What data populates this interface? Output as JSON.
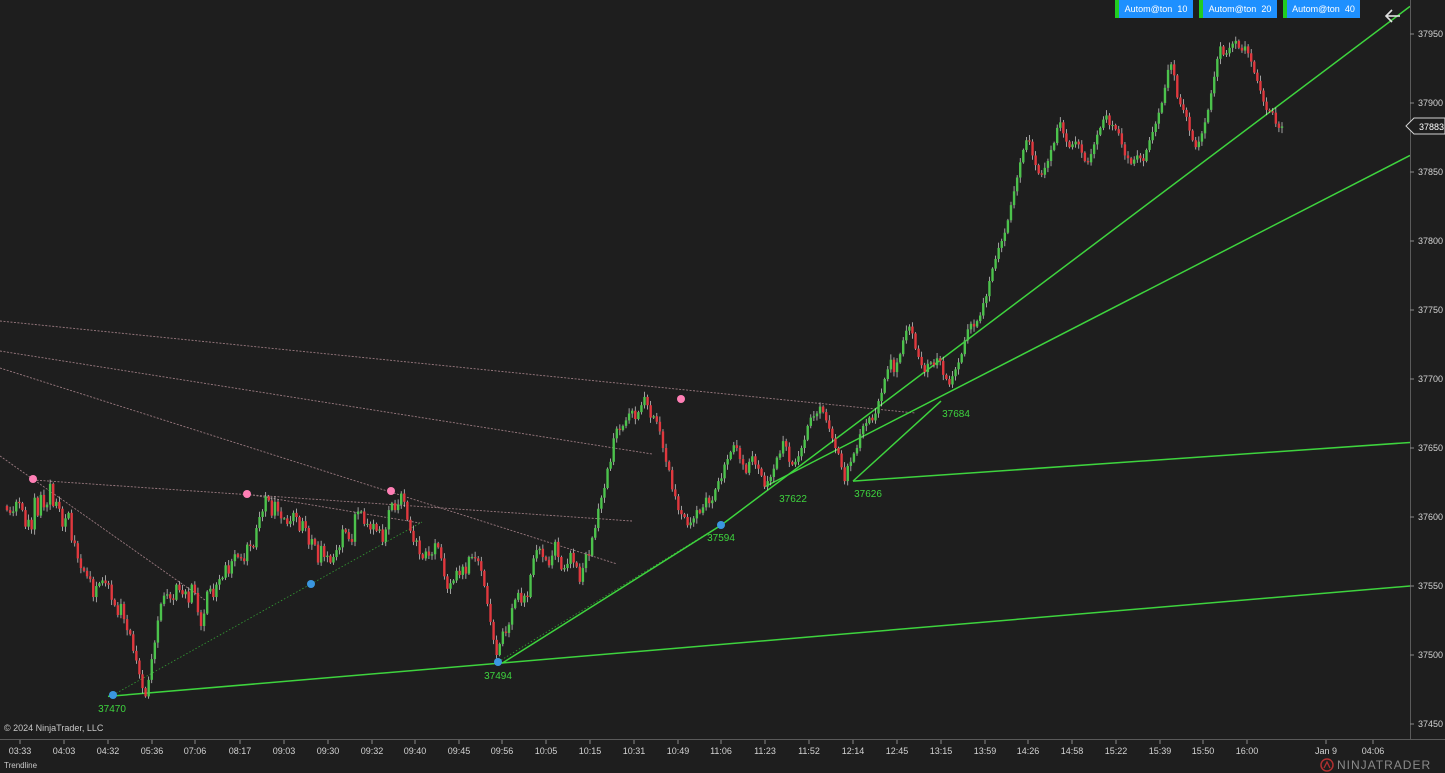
{
  "toolbar": {
    "buttons": [
      {
        "label": "Autom@ton  10"
      },
      {
        "label": "Autom@ton  20"
      },
      {
        "label": "Autom@ton  40"
      }
    ],
    "back_icon": "arrow-left-icon"
  },
  "footer": {
    "copyright": "© 2024 NinjaTrader, LLC",
    "drawing_tool": "Trendline",
    "brand": "NINJATRADER"
  },
  "colors": {
    "background": "#1e1e1e",
    "up_candle": "#4cc24c",
    "down_candle": "#e0383e",
    "trendline": "#3ed43e",
    "swing_high": "#ff7fb5",
    "swing_low": "#3a96e0",
    "resistance": "#9a7a80",
    "axis_text": "#d2d2d2"
  },
  "chart_data": {
    "type": "candlestick",
    "title": "",
    "ylim": [
      37435,
      37980
    ],
    "y_ticks": [
      37450,
      37500,
      37550,
      37600,
      37650,
      37700,
      37750,
      37800,
      37850,
      37900,
      37950
    ],
    "x_tick_labels": [
      "03:33",
      "04:03",
      "04:32",
      "05:36",
      "07:06",
      "08:17",
      "09:03",
      "09:30",
      "09:32",
      "09:40",
      "09:45",
      "09:56",
      "10:05",
      "10:15",
      "10:31",
      "10:49",
      "11:06",
      "11:23",
      "11:52",
      "12:14",
      "12:45",
      "13:15",
      "13:59",
      "14:26",
      "14:58",
      "15:22",
      "15:39",
      "15:50",
      "16:00",
      "Jan 9",
      "04:06"
    ],
    "last_price": 37883,
    "candles": [
      37605,
      37603,
      37604,
      37611,
      37610,
      37605,
      37593,
      37598,
      37591,
      37614,
      37601,
      37616,
      37607,
      37609,
      37624,
      37608,
      37611,
      37606,
      37593,
      37599,
      37603,
      37583,
      37581,
      37570,
      37563,
      37561,
      37557,
      37555,
      37542,
      37550,
      37552,
      37554,
      37552,
      37551,
      37540,
      37536,
      37529,
      37537,
      37526,
      37518,
      37515,
      37503,
      37496,
      37486,
      37476,
      37470,
      37482,
      37497,
      37509,
      37525,
      37537,
      37543,
      37544,
      37541,
      37540,
      37551,
      37547,
      37544,
      37546,
      37538,
      37551,
      37545,
      37531,
      37521,
      37530,
      37546,
      37548,
      37542,
      37551,
      37555,
      37556,
      37565,
      37559,
      37568,
      37573,
      37571,
      37570,
      37568,
      37580,
      37579,
      37578,
      37592,
      37600,
      37604,
      37615,
      37612,
      37601,
      37611,
      37604,
      37599,
      37599,
      37595,
      37597,
      37603,
      37600,
      37590,
      37597,
      37592,
      37580,
      37584,
      37580,
      37567,
      37579,
      37571,
      37572,
      37567,
      37571,
      37576,
      37578,
      37591,
      37589,
      37584,
      37582,
      37602,
      37604,
      37604,
      37595,
      37595,
      37591,
      37595,
      37590,
      37591,
      37582,
      37591,
      37605,
      37610,
      37605,
      37609,
      37617,
      37611,
      37598,
      37590,
      37582,
      37583,
      37573,
      37570,
      37575,
      37572,
      37573,
      37581,
      37578,
      37570,
      37557,
      37548,
      37552,
      37554,
      37561,
      37558,
      37564,
      37559,
      37571,
      37571,
      37570,
      37568,
      37561,
      37550,
      37537,
      37524,
      37511,
      37500,
      37508,
      37517,
      37516,
      37522,
      37534,
      37540,
      37545,
      37538,
      37543,
      37542,
      37558,
      37570,
      37576,
      37577,
      37571,
      37569,
      37565,
      37572,
      37582,
      37571,
      37562,
      37563,
      37566,
      37574,
      37567,
      37564,
      37553,
      37563,
      37573,
      37572,
      37585,
      37592,
      37606,
      37614,
      37621,
      37635,
      37640,
      37657,
      37664,
      37663,
      37666,
      37670,
      37675,
      37677,
      37671,
      37676,
      37681,
      37687,
      37681,
      37672,
      37673,
      37669,
      37662,
      37650,
      37640,
      37634,
      37620,
      37615,
      37605,
      37602,
      37600,
      37594,
      37596,
      37599,
      37605,
      37603,
      37607,
      37614,
      37610,
      37612,
      37620,
      37626,
      37628,
      37638,
      37642,
      37647,
      37652,
      37650,
      37642,
      37638,
      37632,
      37640,
      37644,
      37638,
      37635,
      37630,
      37622,
      37626,
      37629,
      37635,
      37643,
      37646,
      37655,
      37651,
      37640,
      37638,
      37640,
      37644,
      37650,
      37656,
      37666,
      37672,
      37673,
      37675,
      37680,
      37676,
      37670,
      37664,
      37657,
      37650,
      37646,
      37636,
      37626,
      37637,
      37640,
      37646,
      37650,
      37660,
      37666,
      37668,
      37672,
      37670,
      37675,
      37684,
      37690,
      37700,
      37707,
      37714,
      37705,
      37712,
      37718,
      37728,
      37735,
      37738,
      37733,
      37722,
      37716,
      37710,
      37705,
      37711,
      37712,
      37710,
      37715,
      37713,
      37703,
      37700,
      37696,
      37702,
      37707,
      37712,
      37718,
      37728,
      37736,
      37740,
      37738,
      37742,
      37746,
      37755,
      37760,
      37771,
      37780,
      37787,
      37795,
      37800,
      37806,
      37815,
      37826,
      37836,
      37846,
      37857,
      37866,
      37873,
      37872,
      37862,
      37855,
      37849,
      37848,
      37853,
      37858,
      37866,
      37871,
      37882,
      37886,
      37878,
      37872,
      37868,
      37870,
      37872,
      37870,
      37864,
      37858,
      37857,
      37863,
      37870,
      37877,
      37882,
      37888,
      37891,
      37884,
      37884,
      37881,
      37878,
      37870,
      37862,
      37860,
      37856,
      37859,
      37862,
      37860,
      37858,
      37866,
      37873,
      37879,
      37885,
      37893,
      37900,
      37911,
      37924,
      37928,
      37920,
      37904,
      37899,
      37895,
      37890,
      37880,
      37873,
      37868,
      37872,
      37878,
      37886,
      37895,
      37907,
      37919,
      37932,
      37941,
      37935,
      37936,
      37940,
      37943,
      37945,
      37940,
      37938,
      37941,
      37936,
      37930,
      37922,
      37916,
      37909,
      37901,
      37895,
      37894,
      37893,
      37885,
      37882,
      37883
    ],
    "trendlines": [
      {
        "from": [
          37470,
          "04:32"
        ],
        "to": [
          37550,
          "04:06"
        ],
        "label": "37470"
      },
      {
        "from": [
          37494,
          "09:56"
        ],
        "to": [
          37594,
          "11:06"
        ],
        "label": "37494"
      },
      {
        "from": [
          37594,
          "11:06"
        ],
        "to": [
          37970,
          "04:06"
        ],
        "label": "37594"
      },
      {
        "from": [
          37622,
          "11:23"
        ],
        "to": [
          37862,
          "04:06"
        ],
        "label": "37622"
      },
      {
        "from": [
          37626,
          "12:14"
        ],
        "to": [
          37654,
          "04:06"
        ],
        "label": "37626"
      },
      {
        "from": [
          37626,
          "12:14"
        ],
        "to": [
          37684,
          "13:15"
        ],
        "label": "37684"
      }
    ],
    "swing_lows": [
      {
        "price": 37470,
        "label": "37470"
      },
      {
        "price": 37550,
        "label": ""
      },
      {
        "price": 37494,
        "label": "37494"
      },
      {
        "price": 37594,
        "label": "37594"
      },
      {
        "price": 37622,
        "label": "37622"
      },
      {
        "price": 37626,
        "label": "37626"
      },
      {
        "price": 37684,
        "label": "37684"
      }
    ],
    "swing_highs": [
      37626,
      37617,
      37619,
      37684
    ]
  }
}
